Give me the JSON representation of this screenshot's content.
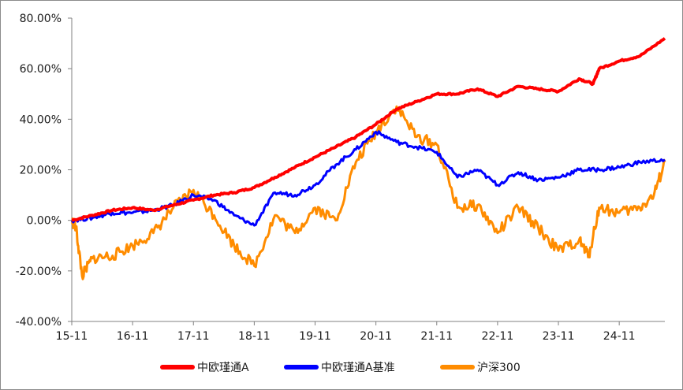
{
  "chart_data": {
    "type": "line",
    "title": "",
    "xlabel": "",
    "ylabel": "",
    "y_tick_labels": [
      "80.00%",
      "60.00%",
      "40.00%",
      "20.00%",
      "0.00%",
      "-20.00%",
      "-40.00%"
    ],
    "x_tick_labels": [
      "15-11",
      "16-11",
      "17-11",
      "18-11",
      "19-11",
      "20-11",
      "21-11",
      "22-11",
      "23-11",
      "24-11"
    ],
    "ylim": [
      -40,
      80
    ],
    "xlim": [
      2015.83,
      2025.58
    ],
    "grid": false,
    "legend_position": "bottom",
    "series": [
      {
        "name": "中欧瑾通A",
        "color": "#ff0000",
        "points": [
          [
            2015.83,
            0
          ],
          [
            2016.17,
            2
          ],
          [
            2016.5,
            4
          ],
          [
            2016.83,
            5
          ],
          [
            2017.17,
            4
          ],
          [
            2017.5,
            6
          ],
          [
            2017.83,
            8
          ],
          [
            2018.17,
            10
          ],
          [
            2018.5,
            11
          ],
          [
            2018.83,
            13
          ],
          [
            2019.17,
            17
          ],
          [
            2019.5,
            21
          ],
          [
            2019.83,
            25
          ],
          [
            2020.17,
            29
          ],
          [
            2020.5,
            33
          ],
          [
            2020.83,
            38
          ],
          [
            2021.17,
            44
          ],
          [
            2021.5,
            47
          ],
          [
            2021.83,
            50
          ],
          [
            2022.17,
            50
          ],
          [
            2022.5,
            52
          ],
          [
            2022.83,
            49
          ],
          [
            2023.17,
            53
          ],
          [
            2023.5,
            52
          ],
          [
            2023.83,
            51
          ],
          [
            2024.17,
            56
          ],
          [
            2024.4,
            54
          ],
          [
            2024.5,
            60
          ],
          [
            2024.83,
            63
          ],
          [
            2025.17,
            65
          ],
          [
            2025.58,
            72
          ]
        ]
      },
      {
        "name": "中欧瑾通A基准",
        "color": "#0000ff",
        "points": [
          [
            2015.83,
            0
          ],
          [
            2016.17,
            1
          ],
          [
            2016.5,
            3
          ],
          [
            2016.83,
            3
          ],
          [
            2017.17,
            4
          ],
          [
            2017.5,
            6
          ],
          [
            2017.83,
            10
          ],
          [
            2018.17,
            8
          ],
          [
            2018.5,
            2
          ],
          [
            2018.83,
            -2
          ],
          [
            2019.17,
            11
          ],
          [
            2019.5,
            10
          ],
          [
            2019.83,
            14
          ],
          [
            2020.17,
            22
          ],
          [
            2020.5,
            28
          ],
          [
            2020.83,
            35
          ],
          [
            2021.17,
            31
          ],
          [
            2021.5,
            29
          ],
          [
            2021.83,
            27
          ],
          [
            2022.17,
            17
          ],
          [
            2022.5,
            20
          ],
          [
            2022.83,
            14
          ],
          [
            2023.17,
            19
          ],
          [
            2023.5,
            16
          ],
          [
            2023.83,
            17
          ],
          [
            2024.17,
            20
          ],
          [
            2024.5,
            20
          ],
          [
            2024.83,
            21
          ],
          [
            2025.17,
            23
          ],
          [
            2025.58,
            24
          ]
        ]
      },
      {
        "name": "沪深300",
        "color": "#ff8c00",
        "points": [
          [
            2015.83,
            0
          ],
          [
            2015.9,
            -3
          ],
          [
            2016,
            -22
          ],
          [
            2016.17,
            -15
          ],
          [
            2016.5,
            -14
          ],
          [
            2016.83,
            -10
          ],
          [
            2017.17,
            -5
          ],
          [
            2017.5,
            5
          ],
          [
            2017.83,
            12
          ],
          [
            2018.17,
            2
          ],
          [
            2018.5,
            -10
          ],
          [
            2018.83,
            -18
          ],
          [
            2019.17,
            2
          ],
          [
            2019.5,
            -5
          ],
          [
            2019.83,
            5
          ],
          [
            2020.17,
            0
          ],
          [
            2020.5,
            23
          ],
          [
            2020.83,
            35
          ],
          [
            2021.17,
            45
          ],
          [
            2021.5,
            33
          ],
          [
            2021.83,
            30
          ],
          [
            2022.17,
            5
          ],
          [
            2022.5,
            6
          ],
          [
            2022.83,
            -5
          ],
          [
            2023.17,
            5
          ],
          [
            2023.5,
            -3
          ],
          [
            2023.83,
            -12
          ],
          [
            2024.17,
            -8
          ],
          [
            2024.33,
            -14
          ],
          [
            2024.5,
            5
          ],
          [
            2024.83,
            3
          ],
          [
            2025.17,
            5
          ],
          [
            2025.4,
            10
          ],
          [
            2025.58,
            23
          ]
        ]
      }
    ]
  }
}
